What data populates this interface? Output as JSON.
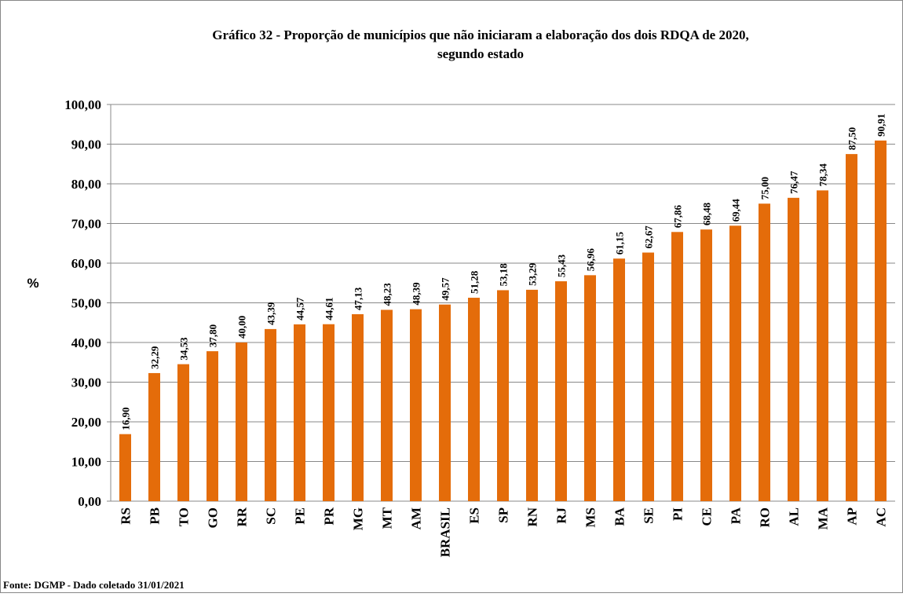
{
  "chart_data": {
    "type": "bar",
    "title": [
      "Gráfico 32 - Proporção  de municípios que não iniciaram a elaboração dos dois RDQA de 2020,",
      "segundo estado"
    ],
    "ylabel": "%",
    "source": "Fonte: DGMP - Dado coletado 31/01/2021",
    "categories": [
      "RS",
      "PB",
      "TO",
      "GO",
      "RR",
      "SC",
      "PE",
      "PR",
      "MG",
      "MT",
      "AM",
      "BRASIL",
      "ES",
      "SP",
      "RN",
      "RJ",
      "MS",
      "BA",
      "SE",
      "PI",
      "CE",
      "PA",
      "RO",
      "AL",
      "MA",
      "AP",
      "AC"
    ],
    "values": [
      16.9,
      32.29,
      34.53,
      37.8,
      40,
      43.39,
      44.57,
      44.61,
      47.13,
      48.23,
      48.39,
      49.57,
      51.28,
      53.18,
      53.29,
      55.43,
      56.96,
      61.15,
      62.67,
      67.86,
      68.48,
      69.44,
      75,
      76.47,
      78.34,
      87.5,
      90.91
    ],
    "value_labels": [
      "16,90",
      "32,29",
      "34,53",
      "37,80",
      "40,00",
      "43,39",
      "44,57",
      "44,61",
      "47,13",
      "48,23",
      "48,39",
      "49,57",
      "51,28",
      "53,18",
      "53,29",
      "55,43",
      "56,96",
      "61,15",
      "62,67",
      "67,86",
      "68,48",
      "69,44",
      "75,00",
      "76,47",
      "78,34",
      "87,50",
      "90,91"
    ],
    "color": "#e46c0a",
    "ylim": [
      0,
      100
    ],
    "yticks": [
      {
        "value": 0,
        "label": "0,00"
      },
      {
        "value": 10,
        "label": "10,00"
      },
      {
        "value": 20,
        "label": "20,00"
      },
      {
        "value": 30,
        "label": "30,00"
      },
      {
        "value": 40,
        "label": "40,00"
      },
      {
        "value": 50,
        "label": "50,00"
      },
      {
        "value": 60,
        "label": "60,00"
      },
      {
        "value": 70,
        "label": "70,00"
      },
      {
        "value": 80,
        "label": "80,00"
      },
      {
        "value": 90,
        "label": "90,00"
      },
      {
        "value": 100,
        "label": "100,00"
      }
    ],
    "grid": true
  }
}
